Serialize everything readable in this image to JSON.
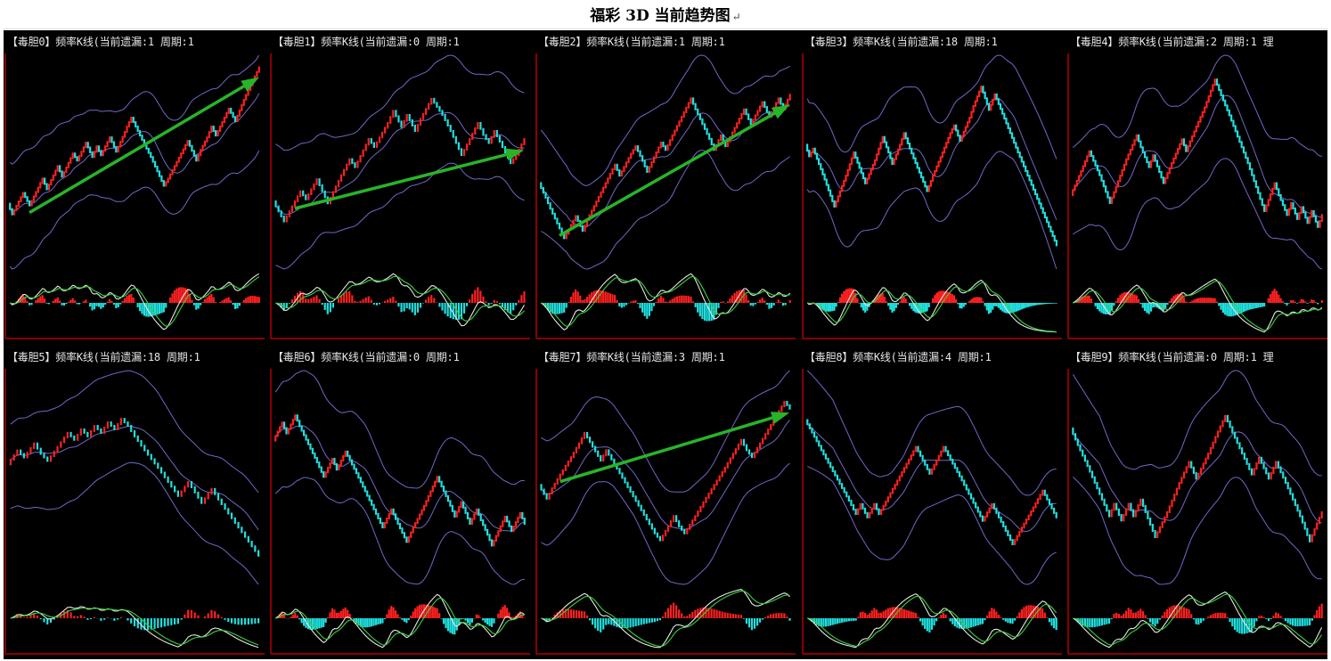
{
  "page": {
    "title": "福彩 3D 当前趋势图",
    "title_mark": "↵"
  },
  "colors": {
    "up": "#ff2020",
    "down": "#20e0e0",
    "band": "#6e68c8",
    "arrow": "#28b428",
    "fast_line": "#e6e6e6",
    "slow_line": "#3cd23c",
    "axis": "#b40000"
  },
  "chart_data": [
    {
      "type": "candlestick",
      "name_label": "【毒胆0】",
      "title": "【毒胆0】频率K线(当前遗漏:1 周期:1",
      "omission": 1,
      "period": 1,
      "trend": "up",
      "path": [
        12,
        6,
        18,
        11,
        26,
        20,
        33,
        27,
        40,
        36,
        46,
        38,
        44,
        39,
        49,
        41,
        52,
        55,
        60,
        50,
        45,
        38,
        30,
        22,
        26,
        33,
        40,
        47,
        36,
        42,
        49,
        55,
        50,
        60,
        65,
        58,
        64,
        70,
        78,
        88
      ]
    },
    {
      "type": "candlestick",
      "name_label": "【毒胆1】",
      "title": "【毒胆1】频率K线(当前遗漏:0 周期:1",
      "omission": 0,
      "period": 1,
      "trend": "up",
      "path": [
        35,
        25,
        30,
        40,
        36,
        46,
        40,
        34,
        48,
        56,
        52,
        66,
        62,
        74,
        80,
        72,
        78,
        70,
        76,
        86,
        82,
        78,
        70,
        64,
        58,
        66,
        74,
        68,
        64,
        70,
        62,
        54,
        58,
        66
      ]
    },
    {
      "type": "candlestick",
      "name_label": "【毒胆2】",
      "title": "【毒胆2】频率K线(当前遗漏:1 周期:1",
      "omission": 1,
      "period": 1,
      "trend": "up",
      "path": [
        40,
        32,
        26,
        18,
        10,
        22,
        14,
        20,
        30,
        40,
        50,
        44,
        56,
        60,
        52,
        46,
        54,
        62,
        58,
        66,
        76,
        86,
        80,
        72,
        64,
        58,
        66,
        60,
        70,
        80,
        72,
        84,
        76,
        86,
        80,
        88
      ]
    },
    {
      "type": "candlestick",
      "name_label": "【毒胆3】",
      "title": "【毒胆3】频率K线(当前遗漏:18 周期:1",
      "omission": 18,
      "period": 1,
      "trend": "none",
      "path": [
        60,
        54,
        58,
        50,
        42,
        28,
        44,
        50,
        56,
        48,
        40,
        52,
        58,
        64,
        56,
        50,
        60,
        66,
        58,
        48,
        36,
        44,
        56,
        66,
        70,
        62,
        74,
        80,
        90,
        84,
        78,
        86,
        76,
        66,
        56,
        44,
        32,
        20,
        8
      ]
    },
    {
      "type": "candlestick",
      "name_label": "【毒胆4】",
      "title": "【毒胆4】频率K线(当前遗漏:2 周期:1 理",
      "omission": 2,
      "period": 1,
      "trend": "none",
      "path": [
        30,
        42,
        52,
        40,
        26,
        48,
        60,
        54,
        44,
        50,
        36,
        46,
        58,
        52,
        62,
        74,
        88,
        80,
        70,
        62,
        54,
        46,
        40,
        34,
        28,
        22,
        36,
        30,
        20,
        26,
        18,
        24,
        16,
        22,
        14,
        20
      ]
    },
    {
      "type": "candlestick",
      "name_label": "【毒胆5】",
      "title": "【毒胆5】频率K线(当前遗漏:18 周期:1",
      "omission": 18,
      "period": 1,
      "trend": "none",
      "path": [
        62,
        70,
        66,
        74,
        68,
        64,
        80,
        76,
        82,
        78,
        84,
        80,
        86,
        82,
        88,
        84,
        78,
        70,
        60,
        52,
        44,
        52,
        46,
        40,
        48,
        42,
        34,
        26,
        18,
        10
      ]
    },
    {
      "type": "candlestick",
      "name_label": "【毒胆6】",
      "title": "【毒胆6】频率K线(当前遗漏:0 周期:1",
      "omission": 0,
      "period": 1,
      "trend": "none",
      "path": [
        76,
        86,
        80,
        90,
        84,
        74,
        64,
        56,
        66,
        60,
        70,
        58,
        48,
        38,
        28,
        38,
        30,
        20,
        28,
        40,
        56,
        48,
        40,
        34,
        42,
        36,
        30,
        38,
        32,
        24,
        18,
        26,
        34,
        26,
        36,
        30
      ]
    },
    {
      "type": "candlestick",
      "name_label": "【毒胆7】",
      "title": "【毒胆7】频率K线(当前遗漏:3 周期:1",
      "omission": 3,
      "period": 1,
      "trend": "up",
      "path": [
        40,
        32,
        38,
        46,
        56,
        64,
        70,
        62,
        54,
        60,
        52,
        44,
        36,
        28,
        20,
        12,
        8,
        16,
        22,
        16,
        12,
        22,
        30,
        40,
        50,
        58,
        66,
        60,
        56,
        64,
        72,
        80,
        88,
        84
      ]
    },
    {
      "type": "candlestick",
      "name_label": "【毒胆8】",
      "title": "【毒胆8】频率K线(当前遗漏:4 周期:1",
      "omission": 4,
      "period": 1,
      "trend": "none",
      "path": [
        86,
        76,
        68,
        58,
        48,
        38,
        30,
        36,
        28,
        36,
        30,
        40,
        50,
        60,
        70,
        62,
        54,
        62,
        70,
        60,
        50,
        42,
        34,
        26,
        36,
        28,
        20,
        12,
        22,
        34,
        44,
        36,
        28
      ]
    },
    {
      "type": "candlestick",
      "name_label": "【毒胆9】",
      "title": "【毒胆9】频率K线(当前遗漏:0 周期:1 理",
      "omission": 0,
      "period": 1,
      "trend": "none",
      "path": [
        70,
        62,
        52,
        44,
        36,
        28,
        34,
        26,
        34,
        28,
        36,
        30,
        24,
        18,
        30,
        44,
        54,
        46,
        58,
        66,
        76,
        68,
        58,
        48,
        56,
        46,
        54,
        44,
        36,
        28,
        22,
        16,
        22,
        30
      ]
    }
  ]
}
